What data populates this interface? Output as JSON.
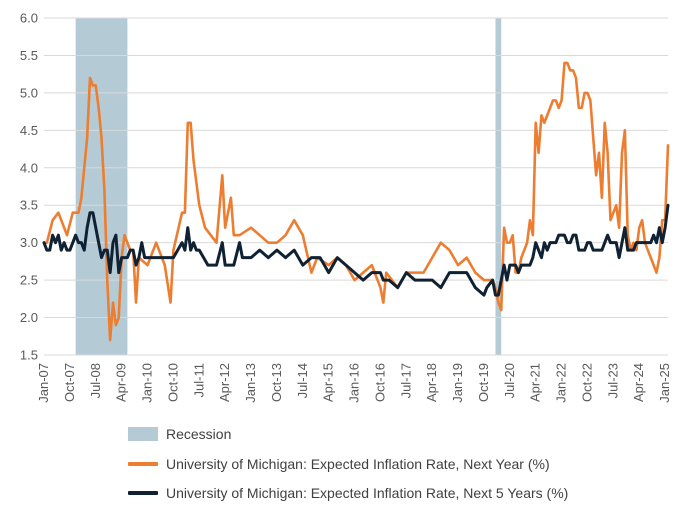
{
  "chart_data": {
    "type": "line",
    "title": "",
    "xlabel": "",
    "ylabel": "",
    "ylim": [
      1.5,
      6.0
    ],
    "yticks": [
      "1.5",
      "2.0",
      "2.5",
      "3.0",
      "3.5",
      "4.0",
      "4.5",
      "5.0",
      "5.5",
      "6.0"
    ],
    "x_start": "Jan-07",
    "x_end": "Feb-25",
    "xticks": [
      "Jan-07",
      "Oct-07",
      "Jul-08",
      "Apr-09",
      "Jan-10",
      "Oct-10",
      "Jul-11",
      "Apr-12",
      "Jan-13",
      "Oct-13",
      "Jul-14",
      "Apr-15",
      "Jan-16",
      "Oct-16",
      "Jul-17",
      "Apr-18",
      "Jan-19",
      "Oct-19",
      "Jul-20",
      "Apr-21",
      "Jan-22",
      "Oct-22",
      "Jul-23",
      "Apr-24",
      "Jan-25"
    ],
    "recessions": [
      {
        "start": "Dec-07",
        "end": "Jun-09"
      },
      {
        "start": "Feb-20",
        "end": "Apr-20"
      }
    ],
    "series": [
      {
        "name": "University of Michigan: Expected Inflation Rate, Next Year (%)",
        "color": "#ED7D31",
        "points": [
          [
            "Jan-07",
            3.0
          ],
          [
            "Feb-07",
            3.0
          ],
          [
            "Apr-07",
            3.3
          ],
          [
            "Jun-07",
            3.4
          ],
          [
            "Sep-07",
            3.1
          ],
          [
            "Nov-07",
            3.4
          ],
          [
            "Jan-08",
            3.4
          ],
          [
            "Feb-08",
            3.6
          ],
          [
            "Apr-08",
            4.4
          ],
          [
            "May-08",
            5.2
          ],
          [
            "Jun-08",
            5.1
          ],
          [
            "Jul-08",
            5.1
          ],
          [
            "Aug-08",
            4.8
          ],
          [
            "Sep-08",
            4.4
          ],
          [
            "Oct-08",
            3.7
          ],
          [
            "Nov-08",
            2.5
          ],
          [
            "Dec-08",
            1.7
          ],
          [
            "Jan-09",
            2.2
          ],
          [
            "Feb-09",
            1.9
          ],
          [
            "Mar-09",
            2.0
          ],
          [
            "Apr-09",
            2.8
          ],
          [
            "May-09",
            3.1
          ],
          [
            "Jun-09",
            3.0
          ],
          [
            "Jul-09",
            2.9
          ],
          [
            "Aug-09",
            2.9
          ],
          [
            "Sep-09",
            2.2
          ],
          [
            "Oct-09",
            2.8
          ],
          [
            "Jan-10",
            2.7
          ],
          [
            "Apr-10",
            3.0
          ],
          [
            "Jul-10",
            2.7
          ],
          [
            "Sep-10",
            2.2
          ],
          [
            "Oct-10",
            2.9
          ],
          [
            "Jan-11",
            3.4
          ],
          [
            "Feb-11",
            3.4
          ],
          [
            "Mar-11",
            4.6
          ],
          [
            "Apr-11",
            4.6
          ],
          [
            "May-11",
            4.1
          ],
          [
            "Jun-11",
            3.8
          ],
          [
            "Jul-11",
            3.5
          ],
          [
            "Sep-11",
            3.2
          ],
          [
            "Jan-12",
            3.0
          ],
          [
            "Mar-12",
            3.9
          ],
          [
            "Apr-12",
            3.2
          ],
          [
            "Jun-12",
            3.6
          ],
          [
            "Jul-12",
            3.1
          ],
          [
            "Sep-12",
            3.1
          ],
          [
            "Jan-13",
            3.2
          ],
          [
            "Apr-13",
            3.1
          ],
          [
            "Jul-13",
            3.0
          ],
          [
            "Oct-13",
            3.0
          ],
          [
            "Jan-14",
            3.1
          ],
          [
            "Apr-14",
            3.3
          ],
          [
            "Jul-14",
            3.1
          ],
          [
            "Oct-14",
            2.6
          ],
          [
            "Dec-14",
            2.8
          ],
          [
            "Apr-15",
            2.7
          ],
          [
            "Jul-15",
            2.8
          ],
          [
            "Oct-15",
            2.7
          ],
          [
            "Jan-16",
            2.5
          ],
          [
            "Apr-16",
            2.6
          ],
          [
            "Jul-16",
            2.7
          ],
          [
            "Oct-16",
            2.4
          ],
          [
            "Nov-16",
            2.2
          ],
          [
            "Dec-16",
            2.6
          ],
          [
            "Apr-17",
            2.4
          ],
          [
            "Jul-17",
            2.6
          ],
          [
            "Oct-17",
            2.6
          ],
          [
            "Jan-18",
            2.6
          ],
          [
            "Apr-18",
            2.8
          ],
          [
            "Jul-18",
            3.0
          ],
          [
            "Oct-18",
            2.9
          ],
          [
            "Jan-19",
            2.7
          ],
          [
            "Apr-19",
            2.8
          ],
          [
            "Jul-19",
            2.6
          ],
          [
            "Oct-19",
            2.5
          ],
          [
            "Jan-20",
            2.5
          ],
          [
            "Feb-20",
            2.4
          ],
          [
            "Mar-20",
            2.2
          ],
          [
            "Apr-20",
            2.1
          ],
          [
            "May-20",
            3.2
          ],
          [
            "Jun-20",
            3.0
          ],
          [
            "Jul-20",
            3.0
          ],
          [
            "Aug-20",
            3.1
          ],
          [
            "Sep-20",
            2.6
          ],
          [
            "Oct-20",
            2.6
          ],
          [
            "Nov-20",
            2.8
          ],
          [
            "Dec-20",
            2.9
          ],
          [
            "Jan-21",
            3.0
          ],
          [
            "Feb-21",
            3.3
          ],
          [
            "Mar-21",
            3.1
          ],
          [
            "Apr-21",
            4.6
          ],
          [
            "May-21",
            4.2
          ],
          [
            "Jun-21",
            4.7
          ],
          [
            "Jul-21",
            4.6
          ],
          [
            "Aug-21",
            4.7
          ],
          [
            "Sep-21",
            4.8
          ],
          [
            "Oct-21",
            4.9
          ],
          [
            "Nov-21",
            4.9
          ],
          [
            "Dec-21",
            4.8
          ],
          [
            "Jan-22",
            4.9
          ],
          [
            "Feb-22",
            5.4
          ],
          [
            "Mar-22",
            5.4
          ],
          [
            "Apr-22",
            5.3
          ],
          [
            "May-22",
            5.3
          ],
          [
            "Jun-22",
            5.2
          ],
          [
            "Jul-22",
            4.8
          ],
          [
            "Aug-22",
            4.8
          ],
          [
            "Sep-22",
            5.0
          ],
          [
            "Oct-22",
            5.0
          ],
          [
            "Nov-22",
            4.9
          ],
          [
            "Dec-22",
            4.4
          ],
          [
            "Jan-23",
            3.9
          ],
          [
            "Feb-23",
            4.2
          ],
          [
            "Mar-23",
            3.6
          ],
          [
            "Apr-23",
            4.6
          ],
          [
            "May-23",
            4.2
          ],
          [
            "Jun-23",
            3.3
          ],
          [
            "Jul-23",
            3.4
          ],
          [
            "Aug-23",
            3.5
          ],
          [
            "Sep-23",
            3.2
          ],
          [
            "Oct-23",
            4.2
          ],
          [
            "Nov-23",
            4.5
          ],
          [
            "Dec-23",
            3.1
          ],
          [
            "Jan-24",
            2.9
          ],
          [
            "Feb-24",
            3.0
          ],
          [
            "Mar-24",
            2.9
          ],
          [
            "Apr-24",
            3.2
          ],
          [
            "May-24",
            3.3
          ],
          [
            "Jun-24",
            3.0
          ],
          [
            "Jul-24",
            2.9
          ],
          [
            "Aug-24",
            2.8
          ],
          [
            "Sep-24",
            2.7
          ],
          [
            "Oct-24",
            2.6
          ],
          [
            "Nov-24",
            2.8
          ],
          [
            "Dec-24",
            3.3
          ],
          [
            "Jan-25",
            3.3
          ],
          [
            "Feb-25",
            4.3
          ]
        ]
      },
      {
        "name": "University of Michigan: Expected Inflation Rate, Next 5 Years (%)",
        "color": "#0F2133",
        "points": [
          [
            "Jan-07",
            3.0
          ],
          [
            "Feb-07",
            2.9
          ],
          [
            "Mar-07",
            2.9
          ],
          [
            "Apr-07",
            3.1
          ],
          [
            "May-07",
            3.0
          ],
          [
            "Jun-07",
            3.1
          ],
          [
            "Jul-07",
            2.9
          ],
          [
            "Aug-07",
            3.0
          ],
          [
            "Sep-07",
            2.9
          ],
          [
            "Oct-07",
            2.9
          ],
          [
            "Nov-07",
            3.0
          ],
          [
            "Dec-07",
            3.1
          ],
          [
            "Jan-08",
            3.0
          ],
          [
            "Feb-08",
            3.0
          ],
          [
            "Mar-08",
            2.9
          ],
          [
            "Apr-08",
            3.2
          ],
          [
            "May-08",
            3.4
          ],
          [
            "Jun-08",
            3.4
          ],
          [
            "Jul-08",
            3.2
          ],
          [
            "Aug-08",
            3.0
          ],
          [
            "Sep-08",
            2.8
          ],
          [
            "Oct-08",
            2.9
          ],
          [
            "Nov-08",
            2.9
          ],
          [
            "Dec-08",
            2.6
          ],
          [
            "Jan-09",
            3.0
          ],
          [
            "Feb-09",
            3.1
          ],
          [
            "Mar-09",
            2.6
          ],
          [
            "Apr-09",
            2.8
          ],
          [
            "May-09",
            2.8
          ],
          [
            "Jun-09",
            2.8
          ],
          [
            "Jul-09",
            2.9
          ],
          [
            "Aug-09",
            2.9
          ],
          [
            "Sep-09",
            2.7
          ],
          [
            "Oct-09",
            2.8
          ],
          [
            "Nov-09",
            3.0
          ],
          [
            "Dec-09",
            2.8
          ],
          [
            "Jan-10",
            2.8
          ],
          [
            "Apr-10",
            2.8
          ],
          [
            "Jul-10",
            2.8
          ],
          [
            "Oct-10",
            2.8
          ],
          [
            "Jan-11",
            3.0
          ],
          [
            "Feb-11",
            2.9
          ],
          [
            "Mar-11",
            3.2
          ],
          [
            "Apr-11",
            2.9
          ],
          [
            "May-11",
            3.0
          ],
          [
            "Jun-11",
            2.9
          ],
          [
            "Jul-11",
            2.9
          ],
          [
            "Oct-11",
            2.7
          ],
          [
            "Jan-12",
            2.7
          ],
          [
            "Mar-12",
            3.0
          ],
          [
            "Apr-12",
            2.7
          ],
          [
            "Jul-12",
            2.7
          ],
          [
            "Sep-12",
            3.0
          ],
          [
            "Oct-12",
            2.8
          ],
          [
            "Jan-13",
            2.8
          ],
          [
            "Apr-13",
            2.9
          ],
          [
            "Jul-13",
            2.8
          ],
          [
            "Oct-13",
            2.9
          ],
          [
            "Jan-14",
            2.8
          ],
          [
            "Apr-14",
            2.9
          ],
          [
            "Jul-14",
            2.7
          ],
          [
            "Oct-14",
            2.8
          ],
          [
            "Jan-15",
            2.8
          ],
          [
            "Apr-15",
            2.6
          ],
          [
            "Jul-15",
            2.8
          ],
          [
            "Oct-15",
            2.7
          ],
          [
            "Jan-16",
            2.6
          ],
          [
            "Apr-16",
            2.5
          ],
          [
            "Jul-16",
            2.6
          ],
          [
            "Oct-16",
            2.6
          ],
          [
            "Nov-16",
            2.5
          ],
          [
            "Jan-17",
            2.5
          ],
          [
            "Apr-17",
            2.4
          ],
          [
            "Jul-17",
            2.6
          ],
          [
            "Oct-17",
            2.5
          ],
          [
            "Jan-18",
            2.5
          ],
          [
            "Apr-18",
            2.5
          ],
          [
            "Jul-18",
            2.4
          ],
          [
            "Oct-18",
            2.6
          ],
          [
            "Jan-19",
            2.6
          ],
          [
            "Apr-19",
            2.6
          ],
          [
            "Jul-19",
            2.4
          ],
          [
            "Oct-19",
            2.3
          ],
          [
            "Nov-19",
            2.4
          ],
          [
            "Jan-20",
            2.5
          ],
          [
            "Feb-20",
            2.3
          ],
          [
            "Mar-20",
            2.3
          ],
          [
            "Apr-20",
            2.5
          ],
          [
            "May-20",
            2.7
          ],
          [
            "Jun-20",
            2.5
          ],
          [
            "Jul-20",
            2.7
          ],
          [
            "Aug-20",
            2.7
          ],
          [
            "Sep-20",
            2.7
          ],
          [
            "Oct-20",
            2.6
          ],
          [
            "Nov-20",
            2.7
          ],
          [
            "Jan-21",
            2.7
          ],
          [
            "Feb-21",
            2.7
          ],
          [
            "Mar-21",
            2.8
          ],
          [
            "Apr-21",
            3.0
          ],
          [
            "May-21",
            2.9
          ],
          [
            "Jun-21",
            2.8
          ],
          [
            "Jul-21",
            3.0
          ],
          [
            "Aug-21",
            2.9
          ],
          [
            "Sep-21",
            3.0
          ],
          [
            "Oct-21",
            3.0
          ],
          [
            "Nov-21",
            3.0
          ],
          [
            "Dec-21",
            3.1
          ],
          [
            "Jan-22",
            3.1
          ],
          [
            "Feb-22",
            3.1
          ],
          [
            "Mar-22",
            3.0
          ],
          [
            "Apr-22",
            3.0
          ],
          [
            "May-22",
            3.1
          ],
          [
            "Jun-22",
            3.1
          ],
          [
            "Jul-22",
            2.9
          ],
          [
            "Aug-22",
            2.9
          ],
          [
            "Sep-22",
            2.9
          ],
          [
            "Oct-22",
            3.0
          ],
          [
            "Nov-22",
            3.0
          ],
          [
            "Dec-22",
            2.9
          ],
          [
            "Jan-23",
            2.9
          ],
          [
            "Feb-23",
            2.9
          ],
          [
            "Mar-23",
            2.9
          ],
          [
            "Apr-23",
            3.0
          ],
          [
            "May-23",
            3.1
          ],
          [
            "Jun-23",
            3.0
          ],
          [
            "Jul-23",
            3.0
          ],
          [
            "Aug-23",
            3.0
          ],
          [
            "Sep-23",
            2.8
          ],
          [
            "Oct-23",
            3.0
          ],
          [
            "Nov-23",
            3.2
          ],
          [
            "Dec-23",
            2.9
          ],
          [
            "Jan-24",
            2.9
          ],
          [
            "Feb-24",
            2.9
          ],
          [
            "Mar-24",
            3.0
          ],
          [
            "Apr-24",
            3.0
          ],
          [
            "May-24",
            3.0
          ],
          [
            "Jun-24",
            3.0
          ],
          [
            "Jul-24",
            3.0
          ],
          [
            "Aug-24",
            3.0
          ],
          [
            "Sep-24",
            3.1
          ],
          [
            "Oct-24",
            3.0
          ],
          [
            "Nov-24",
            3.2
          ],
          [
            "Dec-24",
            3.0
          ],
          [
            "Jan-25",
            3.2
          ],
          [
            "Feb-25",
            3.5
          ]
        ]
      }
    ]
  },
  "legend": {
    "recession_label": "Recession",
    "series1_label": "University of Michigan: Expected Inflation Rate, Next Year (%)",
    "series2_label": "University of Michigan: Expected Inflation Rate, Next 5 Years (%)",
    "recession_color": "#B4CBD6",
    "series1_color": "#ED7D31",
    "series2_color": "#0F2133"
  }
}
